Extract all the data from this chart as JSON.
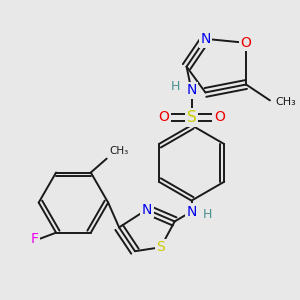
{
  "bg_color": "#e8e8e8",
  "bond_color": "#1a1a1a",
  "bond_width": 1.4,
  "atom_colors": {
    "N": "#0000ee",
    "S": "#cccc00",
    "O": "#ee0000",
    "F": "#ee00ee",
    "H": "#4a9090",
    "C": "#1a1a1a"
  }
}
